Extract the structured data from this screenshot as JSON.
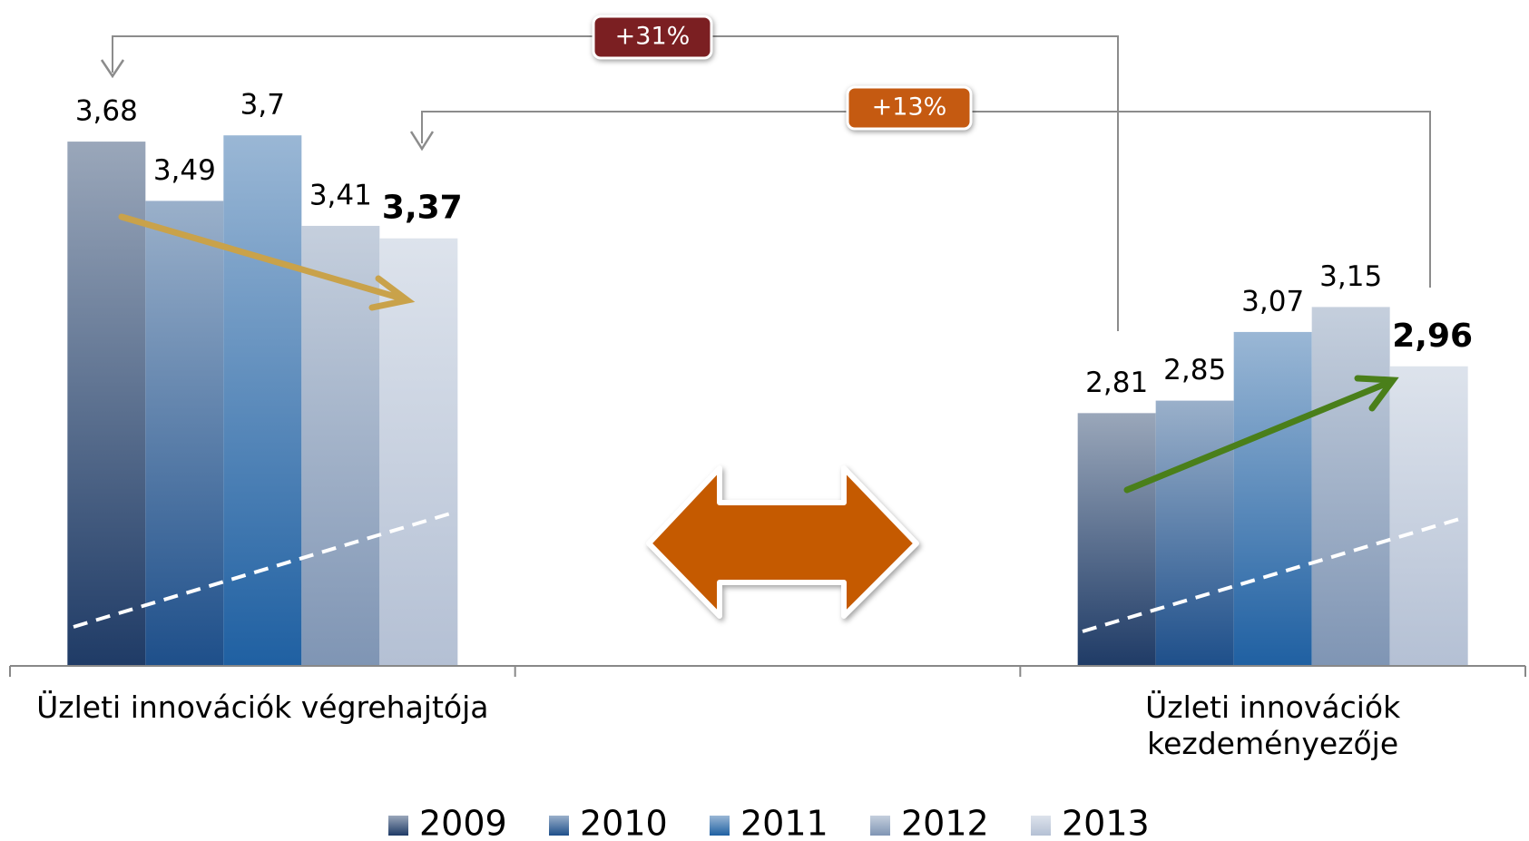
{
  "chart_data": {
    "type": "bar",
    "categories": [
      "Üzleti innovációk végrehajtója",
      null,
      "Üzleti innovációk\nkezdeményezője"
    ],
    "series": [
      {
        "name": "2009",
        "color": "#1f3b66",
        "values": [
          3.68,
          null,
          2.81
        ],
        "value_labels": [
          "3,68",
          null,
          "2,81"
        ]
      },
      {
        "name": "2010",
        "color": "#1e4f8a",
        "values": [
          3.49,
          null,
          2.85
        ],
        "value_labels": [
          "3,49",
          null,
          "2,85"
        ]
      },
      {
        "name": "2011",
        "color": "#1f60a2",
        "values": [
          3.7,
          null,
          3.07
        ],
        "value_labels": [
          "3,7",
          null,
          "3,07"
        ]
      },
      {
        "name": "2012",
        "color": "#7f95b4",
        "values": [
          3.41,
          null,
          3.15
        ],
        "value_labels": [
          "3,41",
          null,
          "3,15"
        ]
      },
      {
        "name": "2013",
        "color": "#b4c0d4",
        "values": [
          3.37,
          null,
          2.96
        ],
        "value_labels": [
          "3,37",
          null,
          "2,96"
        ]
      }
    ],
    "ylim": [
      2,
      4
    ],
    "annotations": [
      "+31%",
      "+13%"
    ],
    "legend": "bottom"
  }
}
